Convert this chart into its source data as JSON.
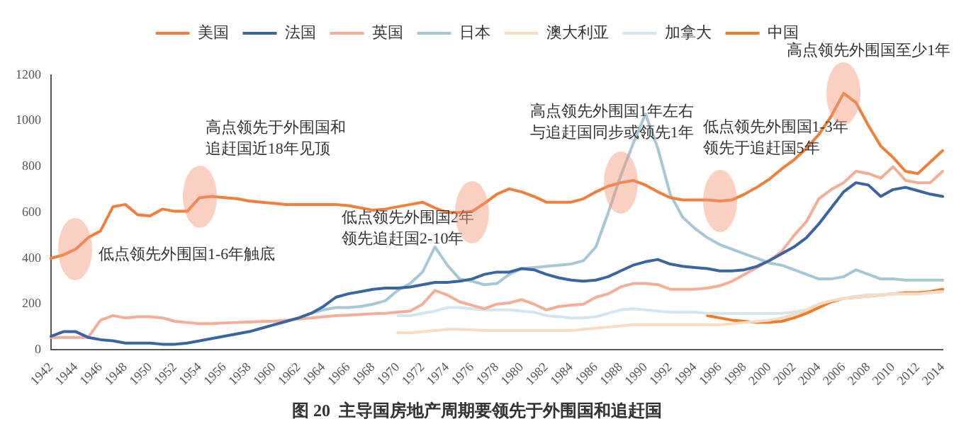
{
  "chart_data": {
    "type": "line",
    "title": "图 20  主导国房地产周期要领先于外围国和追赶国",
    "categories": [
      "1942",
      null,
      "1944",
      null,
      "1946",
      null,
      "1948",
      null,
      "1950",
      null,
      "1952",
      null,
      "1954",
      null,
      "1956",
      null,
      "1958",
      null,
      "1960",
      null,
      "1962",
      null,
      "1964",
      null,
      "1966",
      null,
      "1968",
      null,
      "1970",
      null,
      "1972",
      null,
      "1974",
      null,
      "1976",
      null,
      "1978",
      null,
      "1980",
      null,
      "1982",
      null,
      "1984",
      null,
      "1986",
      null,
      "1988",
      null,
      "1990",
      null,
      "1992",
      null,
      "1994",
      null,
      "1996",
      null,
      "1998",
      null,
      "2000",
      null,
      "2002",
      null,
      "2004",
      null,
      "2006",
      null,
      "2008",
      null,
      "2010",
      null,
      "2012",
      null,
      "2014"
    ],
    "series": [
      {
        "name": "美国",
        "color": "#ef7f3a",
        "values": [
          400,
          415,
          440,
          490,
          520,
          625,
          635,
          590,
          585,
          615,
          605,
          605,
          665,
          670,
          665,
          660,
          650,
          645,
          640,
          635,
          635,
          635,
          635,
          635,
          630,
          620,
          610,
          615,
          625,
          635,
          645,
          620,
          600,
          600,
          605,
          640,
          680,
          703,
          690,
          670,
          645,
          645,
          645,
          660,
          690,
          715,
          730,
          740,
          720,
          690,
          665,
          655,
          655,
          655,
          650,
          655,
          680,
          710,
          745,
          790,
          830,
          880,
          940,
          1020,
          1120,
          1080,
          980,
          890,
          840,
          780,
          770,
          820,
          870
        ]
      },
      {
        "name": "法国",
        "color": "#3b64a3",
        "values": [
          60,
          80,
          80,
          55,
          45,
          40,
          30,
          30,
          30,
          25,
          25,
          30,
          40,
          50,
          60,
          70,
          80,
          95,
          110,
          125,
          140,
          160,
          190,
          230,
          245,
          255,
          265,
          270,
          270,
          275,
          285,
          295,
          295,
          300,
          310,
          330,
          340,
          340,
          355,
          350,
          330,
          315,
          305,
          300,
          305,
          320,
          345,
          370,
          385,
          395,
          375,
          365,
          360,
          355,
          345,
          345,
          350,
          365,
          390,
          420,
          450,
          490,
          550,
          620,
          690,
          730,
          720,
          670,
          700,
          710,
          695,
          680,
          670
        ]
      },
      {
        "name": "英国",
        "color": "#f4ad96",
        "values": [
          55,
          55,
          55,
          55,
          130,
          150,
          140,
          145,
          145,
          140,
          125,
          120,
          115,
          115,
          118,
          120,
          122,
          124,
          126,
          130,
          135,
          140,
          145,
          150,
          152,
          155,
          158,
          160,
          165,
          170,
          200,
          260,
          240,
          210,
          195,
          180,
          200,
          205,
          220,
          200,
          175,
          190,
          195,
          200,
          230,
          245,
          275,
          290,
          290,
          285,
          265,
          265,
          265,
          270,
          280,
          300,
          330,
          360,
          390,
          430,
          500,
          560,
          660,
          700,
          730,
          780,
          770,
          750,
          800,
          740,
          730,
          730,
          780
        ]
      },
      {
        "name": "日本",
        "color": "#a7c6d6",
        "values": [
          null,
          null,
          null,
          null,
          null,
          null,
          null,
          null,
          null,
          null,
          null,
          null,
          null,
          null,
          null,
          null,
          null,
          null,
          110,
          125,
          140,
          160,
          175,
          185,
          185,
          190,
          200,
          215,
          260,
          290,
          340,
          450,
          370,
          310,
          300,
          285,
          290,
          330,
          355,
          360,
          365,
          370,
          375,
          390,
          450,
          600,
          760,
          900,
          1030,
          880,
          680,
          580,
          530,
          490,
          460,
          440,
          420,
          400,
          380,
          370,
          350,
          330,
          310,
          310,
          320,
          350,
          330,
          310,
          310,
          305,
          305,
          305,
          305
        ]
      },
      {
        "name": "澳大利亚",
        "color": "#f8dbc3",
        "values": [
          null,
          null,
          null,
          null,
          null,
          null,
          null,
          null,
          null,
          null,
          null,
          null,
          null,
          null,
          null,
          null,
          null,
          null,
          null,
          null,
          null,
          null,
          null,
          null,
          null,
          null,
          null,
          null,
          75,
          75,
          80,
          85,
          90,
          90,
          88,
          85,
          85,
          85,
          85,
          85,
          85,
          85,
          85,
          90,
          95,
          100,
          105,
          110,
          110,
          110,
          110,
          110,
          110,
          110,
          110,
          115,
          120,
          125,
          130,
          140,
          155,
          175,
          200,
          215,
          225,
          230,
          235,
          240,
          245,
          245,
          245,
          250,
          255
        ]
      },
      {
        "name": "加拿大",
        "color": "#d4e5ed",
        "values": [
          null,
          null,
          null,
          null,
          null,
          null,
          null,
          null,
          null,
          null,
          null,
          null,
          null,
          null,
          null,
          null,
          null,
          null,
          null,
          null,
          null,
          null,
          null,
          null,
          null,
          null,
          null,
          null,
          150,
          150,
          160,
          170,
          185,
          185,
          180,
          175,
          175,
          175,
          170,
          165,
          150,
          145,
          140,
          140,
          145,
          160,
          175,
          180,
          175,
          170,
          165,
          165,
          165,
          160,
          160,
          160,
          160,
          160,
          160,
          160,
          165,
          175,
          200,
          215,
          225,
          235,
          240,
          240,
          245,
          245,
          245,
          250,
          255
        ]
      },
      {
        "name": "中国",
        "color": "#f07a28",
        "values": [
          null,
          null,
          null,
          null,
          null,
          null,
          null,
          null,
          null,
          null,
          null,
          null,
          null,
          null,
          null,
          null,
          null,
          null,
          null,
          null,
          null,
          null,
          null,
          null,
          null,
          null,
          null,
          null,
          null,
          null,
          null,
          null,
          null,
          null,
          null,
          null,
          null,
          null,
          null,
          null,
          null,
          null,
          null,
          null,
          null,
          null,
          null,
          null,
          null,
          null,
          null,
          null,
          null,
          150,
          140,
          130,
          125,
          120,
          120,
          125,
          140,
          160,
          185,
          210,
          225,
          230,
          235,
          240,
          245,
          250,
          250,
          255,
          265
        ]
      }
    ],
    "ylim": [
      0,
      1200
    ],
    "yticks": [
      0,
      200,
      400,
      600,
      800,
      1000,
      1200
    ],
    "grid": false,
    "legend": "top",
    "marker": "none",
    "line_style": "solid",
    "annotations": [
      {
        "text": "低点领先外围国1-6年触底",
        "x": "1944",
        "y": 440
      },
      {
        "text": "高点领先于外围国和追赶国近18年见顶",
        "x": "1954",
        "y": 670
      },
      {
        "text": "低点领先外围国2年领先追赶国2-10年",
        "x": "1976",
        "y": 600
      },
      {
        "text": "高点领先外围国1年左右与追赶国同步或领先1年",
        "x": "1988",
        "y": 730
      },
      {
        "text": "低点领先外围国1-3年领先于追赶国5年",
        "x": "1996",
        "y": 650
      },
      {
        "text": "高点领先外围国至少1年",
        "x": "2006",
        "y": 1120
      }
    ]
  }
}
